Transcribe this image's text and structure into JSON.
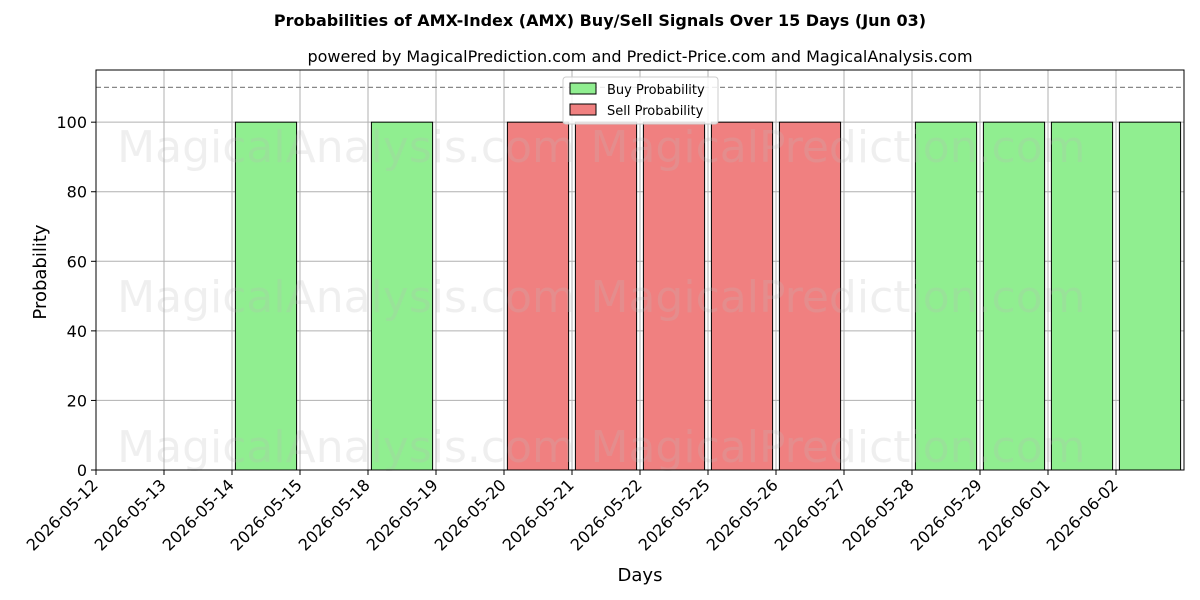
{
  "chart_data": {
    "type": "bar",
    "title": "Probabilities of AMX-Index (AMX) Buy/Sell Signals Over 15 Days (Jun 03)",
    "subtitle": "powered by MagicalPrediction.com and Predict-Price.com and MagicalAnalysis.com",
    "xlabel": "Days",
    "ylabel": "Probability",
    "ylim": [
      0,
      115
    ],
    "yticks": [
      0,
      20,
      40,
      60,
      80,
      100
    ],
    "reference_line": 110,
    "grid": true,
    "legend_position": "top-center",
    "categories": [
      "2026-05-12",
      "2026-05-13",
      "2026-05-14",
      "2026-05-15",
      "2026-05-18",
      "2026-05-19",
      "2026-05-20",
      "2026-05-21",
      "2026-05-22",
      "2026-05-25",
      "2026-05-26",
      "2026-05-27",
      "2026-05-28",
      "2026-05-29",
      "2026-06-01",
      "2026-06-02"
    ],
    "series": [
      {
        "name": "Buy Probability",
        "color": "#90ee90",
        "values": [
          0,
          0,
          100,
          0,
          100,
          0,
          0,
          0,
          0,
          0,
          0,
          0,
          100,
          100,
          100,
          100
        ]
      },
      {
        "name": "Sell Probability",
        "color": "#f08080",
        "values": [
          0,
          0,
          0,
          0,
          0,
          0,
          100,
          100,
          100,
          100,
          100,
          0,
          0,
          0,
          0,
          0
        ]
      }
    ],
    "watermarks": [
      "MagicalAnalysis.com",
      "MagicalPrediction.com"
    ]
  }
}
